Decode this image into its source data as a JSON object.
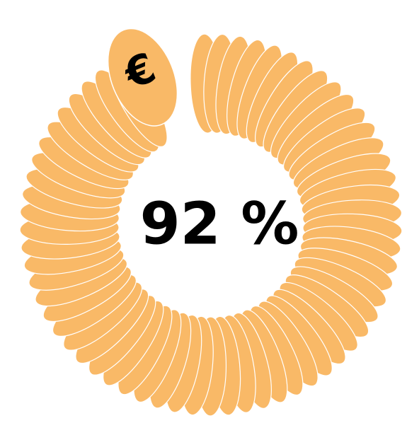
{
  "chart_data": {
    "type": "progress-ring",
    "values": [
      92
    ],
    "value_labels": [
      "92 %"
    ],
    "color": "#f9b967",
    "symbol": "€"
  }
}
